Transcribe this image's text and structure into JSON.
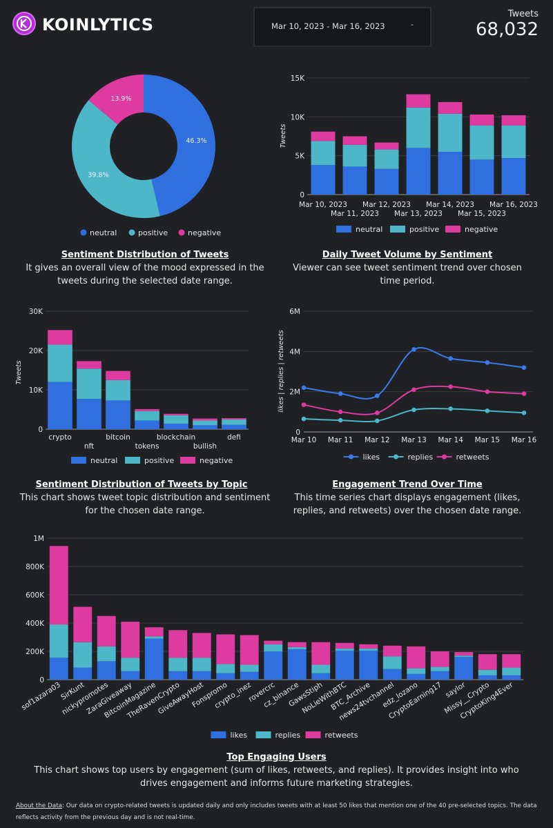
{
  "header": {
    "brand": "KOINLYTICS",
    "date_range": "Mar 10, 2023 - Mar 16, 2023",
    "date_caret": "-",
    "tweets_label": "Tweets",
    "tweets_value": "68,032"
  },
  "colors": {
    "neutral": "#2f6fe0",
    "positive": "#4db6c8",
    "negative": "#dd3b9f",
    "background": "#202124"
  },
  "captions": {
    "sentiment_title": "Sentiment Distribution of Tweets",
    "sentiment_text": "It gives an overall view of the mood expressed in the tweets during the selected date range.",
    "daily_title": "Daily Tweet Volume by Sentiment",
    "daily_text": "Viewer can see tweet sentiment trend over chosen time period.",
    "topic_title": "Sentiment Distribution of Tweets by Topic",
    "topic_text": "This chart shows tweet topic distribution and sentiment for the chosen date range.",
    "engagement_title": "Engagement Trend Over Time",
    "engagement_text": "This time series chart displays engagement (likes, replies, and retweets) over the chosen date range.",
    "users_title": "Top Engaging Users",
    "users_text": "This chart shows top users by engagement (sum of likes, retweets, and replies). It provides insight into who drives engagement and informs future marketing strategies."
  },
  "footer": {
    "label": "About the Data",
    "text": ": Our data on crypto-related tweets is updated daily and only includes tweets with at least 50 likes that mention one of the 40 pre-selected topics. The data reflects activity from the previous day and is not real-time."
  },
  "chart_data": [
    {
      "type": "pie",
      "donut": true,
      "labels": [
        "neutral",
        "positive",
        "negative"
      ],
      "values": [
        46.3,
        39.8,
        13.9
      ],
      "value_labels": [
        "46.3%",
        "39.8%",
        "13.9%"
      ],
      "legend": [
        "neutral",
        "positive",
        "negative"
      ]
    },
    {
      "type": "bar",
      "stacked": true,
      "categories": [
        "Mar 10, 2023",
        "Mar 11, 2023",
        "Mar 12, 2023",
        "Mar 13, 2023",
        "Mar 14, 2023",
        "Mar 15, 2023",
        "Mar 16, 2023"
      ],
      "series": [
        {
          "name": "neutral",
          "values": [
            3800,
            3600,
            3300,
            6000,
            5500,
            4500,
            4700
          ]
        },
        {
          "name": "positive",
          "values": [
            3100,
            2800,
            2500,
            5200,
            4900,
            4400,
            4200
          ]
        },
        {
          "name": "negative",
          "values": [
            1200,
            1100,
            900,
            1700,
            1500,
            1400,
            1300
          ]
        }
      ],
      "ylabel": "Tweets",
      "ylim": [
        0,
        15000
      ],
      "y_ticks": [
        "0",
        "5K",
        "10K",
        "15K"
      ]
    },
    {
      "type": "bar",
      "stacked": true,
      "categories": [
        "crypto",
        "nft",
        "bitcoin",
        "tokens",
        "blockchain",
        "bullish",
        "defi"
      ],
      "series": [
        {
          "name": "neutral",
          "values": [
            12000,
            7700,
            7300,
            2200,
            1400,
            1000,
            1100
          ]
        },
        {
          "name": "positive",
          "values": [
            9500,
            7700,
            5200,
            2400,
            2100,
            1200,
            1400
          ]
        },
        {
          "name": "negative",
          "values": [
            3700,
            1900,
            2300,
            500,
            400,
            500,
            300
          ]
        }
      ],
      "ylabel": "Tweets",
      "ylim": [
        0,
        30000
      ],
      "y_ticks": [
        "0",
        "10K",
        "20K",
        "30K"
      ]
    },
    {
      "type": "line",
      "x": [
        "Mar 10",
        "Mar 11",
        "Mar 12",
        "Mar 13",
        "Mar 14",
        "Mar 15",
        "Mar 16"
      ],
      "series": [
        {
          "name": "likes",
          "values": [
            2200000,
            1900000,
            1800000,
            4100000,
            3650000,
            3450000,
            3200000
          ]
        },
        {
          "name": "replies",
          "values": [
            650000,
            580000,
            550000,
            1100000,
            1150000,
            1050000,
            950000
          ]
        },
        {
          "name": "retweets",
          "values": [
            1350000,
            1000000,
            950000,
            2100000,
            2250000,
            2000000,
            1900000
          ]
        }
      ],
      "ylabel": "likes | replies | retweets",
      "ylim": [
        0,
        6000000
      ],
      "y_ticks": [
        "0",
        "2M",
        "4M",
        "6M"
      ]
    },
    {
      "type": "bar",
      "stacked": true,
      "categories": [
        "sof1azara03",
        "SirKunt",
        "nickypromotes",
        "ZaraGiveaway",
        "BitcoinMagazine",
        "TheRavenCrypto",
        "GiveAwayHost",
        "Fonspromo",
        "crypto_inez",
        "rovercrc",
        "cz_binance",
        "GawsStiph",
        "NoLieWithBTC",
        "BTC_Archive",
        "news24tvchannel",
        "edz_lozano",
        "CryptoEarning17",
        "saylor",
        "Missy__Crypto",
        "CryptoKing4Ever"
      ],
      "series": [
        {
          "name": "likes",
          "values": [
            155000,
            85000,
            130000,
            60000,
            290000,
            60000,
            60000,
            45000,
            55000,
            200000,
            215000,
            45000,
            205000,
            205000,
            75000,
            40000,
            60000,
            160000,
            30000,
            30000
          ]
        },
        {
          "name": "replies",
          "values": [
            235000,
            180000,
            105000,
            95000,
            15000,
            95000,
            95000,
            65000,
            50000,
            50000,
            15000,
            60000,
            15000,
            15000,
            90000,
            40000,
            30000,
            10000,
            40000,
            55000
          ]
        },
        {
          "name": "retweets",
          "values": [
            555000,
            250000,
            215000,
            255000,
            65000,
            195000,
            175000,
            210000,
            210000,
            25000,
            35000,
            160000,
            40000,
            30000,
            75000,
            155000,
            110000,
            25000,
            110000,
            95000
          ]
        }
      ],
      "ylim": [
        0,
        1000000
      ],
      "y_ticks": [
        "0",
        "200K",
        "400K",
        "600K",
        "800K",
        "1M"
      ]
    }
  ]
}
